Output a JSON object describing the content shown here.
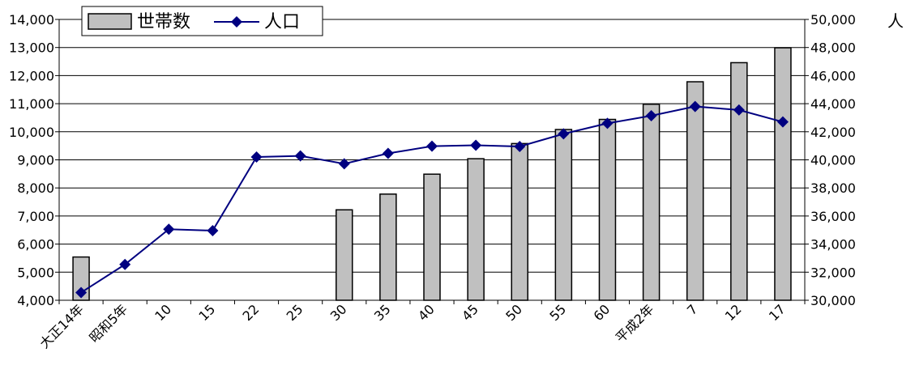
{
  "chart_data": {
    "type": "bar",
    "categories": [
      "大正14年",
      "昭和5年",
      "10",
      "15",
      "22",
      "25",
      "30",
      "35",
      "40",
      "45",
      "50",
      "55",
      "60",
      "平成2年",
      "7",
      "12",
      "17"
    ],
    "series": [
      {
        "name": "世帯数",
        "type": "bar",
        "axis": "left",
        "color": "#C0C0C0",
        "values": [
          5540,
          null,
          null,
          null,
          null,
          null,
          7220,
          7780,
          8490,
          9040,
          9580,
          10080,
          10440,
          10980,
          11780,
          12460,
          12990
        ]
      },
      {
        "name": "人口",
        "type": "line",
        "axis": "right",
        "color": "#000080",
        "values": [
          30550,
          32550,
          35060,
          34960,
          40200,
          40280,
          39720,
          40460,
          40970,
          41040,
          40950,
          41850,
          42600,
          43140,
          43800,
          43550,
          42700
        ]
      }
    ],
    "y_left": {
      "ylim": [
        4000,
        14000
      ],
      "ticks": [
        "4,000",
        "5,000",
        "6,000",
        "7,000",
        "8,000",
        "9,000",
        "10,000",
        "11,000",
        "12,000",
        "13,000",
        "14,000"
      ]
    },
    "y_right": {
      "ylim": [
        30000,
        50000
      ],
      "unit": "人",
      "ticks": [
        "30,000",
        "32,000",
        "34,000",
        "36,000",
        "38,000",
        "40,000",
        "42,000",
        "44,000",
        "46,000",
        "48,000",
        "50,000"
      ]
    },
    "grid": true,
    "legend_position": "top-left",
    "title": "",
    "xlabel": "",
    "ylabel": ""
  }
}
